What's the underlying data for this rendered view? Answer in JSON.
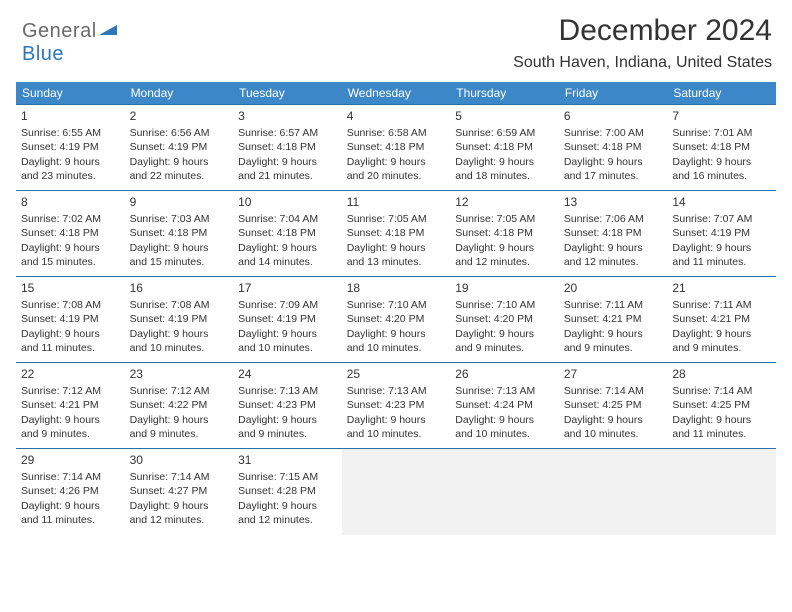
{
  "logo": {
    "word1": "General",
    "word2": "Blue"
  },
  "title": "December 2024",
  "subtitle": "South Haven, Indiana, United States",
  "colors": {
    "header_bg": "#3c87c7",
    "header_text": "#ffffff",
    "row_border": "#2f6fa8",
    "empty_bg": "#f2f2f2",
    "text": "#333333",
    "logo_gray": "#6a6a6a",
    "logo_blue": "#2f77bb"
  },
  "weekdays": [
    "Sunday",
    "Monday",
    "Tuesday",
    "Wednesday",
    "Thursday",
    "Friday",
    "Saturday"
  ],
  "weeks": [
    [
      {
        "n": "1",
        "sr": "6:55 AM",
        "ss": "4:19 PM",
        "dl": "9 hours and 23 minutes."
      },
      {
        "n": "2",
        "sr": "6:56 AM",
        "ss": "4:19 PM",
        "dl": "9 hours and 22 minutes."
      },
      {
        "n": "3",
        "sr": "6:57 AM",
        "ss": "4:18 PM",
        "dl": "9 hours and 21 minutes."
      },
      {
        "n": "4",
        "sr": "6:58 AM",
        "ss": "4:18 PM",
        "dl": "9 hours and 20 minutes."
      },
      {
        "n": "5",
        "sr": "6:59 AM",
        "ss": "4:18 PM",
        "dl": "9 hours and 18 minutes."
      },
      {
        "n": "6",
        "sr": "7:00 AM",
        "ss": "4:18 PM",
        "dl": "9 hours and 17 minutes."
      },
      {
        "n": "7",
        "sr": "7:01 AM",
        "ss": "4:18 PM",
        "dl": "9 hours and 16 minutes."
      }
    ],
    [
      {
        "n": "8",
        "sr": "7:02 AM",
        "ss": "4:18 PM",
        "dl": "9 hours and 15 minutes."
      },
      {
        "n": "9",
        "sr": "7:03 AM",
        "ss": "4:18 PM",
        "dl": "9 hours and 15 minutes."
      },
      {
        "n": "10",
        "sr": "7:04 AM",
        "ss": "4:18 PM",
        "dl": "9 hours and 14 minutes."
      },
      {
        "n": "11",
        "sr": "7:05 AM",
        "ss": "4:18 PM",
        "dl": "9 hours and 13 minutes."
      },
      {
        "n": "12",
        "sr": "7:05 AM",
        "ss": "4:18 PM",
        "dl": "9 hours and 12 minutes."
      },
      {
        "n": "13",
        "sr": "7:06 AM",
        "ss": "4:18 PM",
        "dl": "9 hours and 12 minutes."
      },
      {
        "n": "14",
        "sr": "7:07 AM",
        "ss": "4:19 PM",
        "dl": "9 hours and 11 minutes."
      }
    ],
    [
      {
        "n": "15",
        "sr": "7:08 AM",
        "ss": "4:19 PM",
        "dl": "9 hours and 11 minutes."
      },
      {
        "n": "16",
        "sr": "7:08 AM",
        "ss": "4:19 PM",
        "dl": "9 hours and 10 minutes."
      },
      {
        "n": "17",
        "sr": "7:09 AM",
        "ss": "4:19 PM",
        "dl": "9 hours and 10 minutes."
      },
      {
        "n": "18",
        "sr": "7:10 AM",
        "ss": "4:20 PM",
        "dl": "9 hours and 10 minutes."
      },
      {
        "n": "19",
        "sr": "7:10 AM",
        "ss": "4:20 PM",
        "dl": "9 hours and 9 minutes."
      },
      {
        "n": "20",
        "sr": "7:11 AM",
        "ss": "4:21 PM",
        "dl": "9 hours and 9 minutes."
      },
      {
        "n": "21",
        "sr": "7:11 AM",
        "ss": "4:21 PM",
        "dl": "9 hours and 9 minutes."
      }
    ],
    [
      {
        "n": "22",
        "sr": "7:12 AM",
        "ss": "4:21 PM",
        "dl": "9 hours and 9 minutes."
      },
      {
        "n": "23",
        "sr": "7:12 AM",
        "ss": "4:22 PM",
        "dl": "9 hours and 9 minutes."
      },
      {
        "n": "24",
        "sr": "7:13 AM",
        "ss": "4:23 PM",
        "dl": "9 hours and 9 minutes."
      },
      {
        "n": "25",
        "sr": "7:13 AM",
        "ss": "4:23 PM",
        "dl": "9 hours and 10 minutes."
      },
      {
        "n": "26",
        "sr": "7:13 AM",
        "ss": "4:24 PM",
        "dl": "9 hours and 10 minutes."
      },
      {
        "n": "27",
        "sr": "7:14 AM",
        "ss": "4:25 PM",
        "dl": "9 hours and 10 minutes."
      },
      {
        "n": "28",
        "sr": "7:14 AM",
        "ss": "4:25 PM",
        "dl": "9 hours and 11 minutes."
      }
    ],
    [
      {
        "n": "29",
        "sr": "7:14 AM",
        "ss": "4:26 PM",
        "dl": "9 hours and 11 minutes."
      },
      {
        "n": "30",
        "sr": "7:14 AM",
        "ss": "4:27 PM",
        "dl": "9 hours and 12 minutes."
      },
      {
        "n": "31",
        "sr": "7:15 AM",
        "ss": "4:28 PM",
        "dl": "9 hours and 12 minutes."
      },
      null,
      null,
      null,
      null
    ]
  ],
  "labels": {
    "sunrise": "Sunrise: ",
    "sunset": "Sunset: ",
    "daylight": "Daylight: "
  }
}
